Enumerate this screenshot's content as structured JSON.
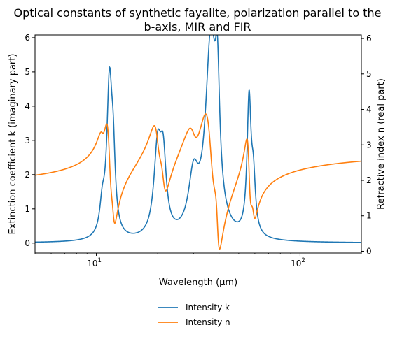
{
  "chart_data": {
    "type": "line",
    "title_line1": "Optical constants of synthetic fayalite, polarization parallel to the",
    "title_line2": "b-axis, MIR and FIR",
    "xlabel": "Wavelength (μm)",
    "ylabel_left": "Extinction coefficient k (imaginary part)",
    "ylabel_right": "Refractive index n (real part)",
    "x_scale": "log",
    "xlim": [
      5,
      200
    ],
    "ylim_left": [
      -0.29,
      6.08
    ],
    "ylim_right": [
      -0.05,
      6.1
    ],
    "x_ticks": [
      {
        "value": 10,
        "mantissa": "10",
        "exp": "1"
      },
      {
        "value": 100,
        "mantissa": "10",
        "exp": "2"
      }
    ],
    "y_ticks_left": [
      0,
      1,
      2,
      3,
      4,
      5,
      6
    ],
    "y_ticks_right": [
      0,
      1,
      2,
      3,
      4,
      5,
      6
    ],
    "grid": false,
    "legend_position": "bottom-center, below plot",
    "series": [
      {
        "name": "Intensity k",
        "axis": "left",
        "color": "#1f77b4",
        "offset": 0.0,
        "baseline": 0.0,
        "resonances": [
          {
            "x": 10.7,
            "a": 0.8,
            "w": 0.015
          },
          {
            "x": 11.6,
            "a": 4.4,
            "w": 0.016
          },
          {
            "x": 12.1,
            "a": 1.75,
            "w": 0.012
          },
          {
            "x": 20.0,
            "a": 2.5,
            "w": 0.022
          },
          {
            "x": 21.3,
            "a": 2.0,
            "w": 0.018
          },
          {
            "x": 30.0,
            "a": 1.6,
            "w": 0.03
          },
          {
            "x": 36.5,
            "a": 5.7,
            "w": 0.032
          },
          {
            "x": 39.3,
            "a": 3.05,
            "w": 0.013
          },
          {
            "x": 56.2,
            "a": 3.9,
            "w": 0.012
          },
          {
            "x": 59.0,
            "a": 1.45,
            "w": 0.012
          }
        ]
      },
      {
        "name": "Intensity n",
        "axis": "right",
        "color": "#ff7f0e",
        "offset": 1.7,
        "baseline": 2.9,
        "resonances": [
          {
            "x": 10.7,
            "a": 0.8,
            "w": 0.015
          },
          {
            "x": 11.6,
            "a": 4.4,
            "w": 0.016
          },
          {
            "x": 12.1,
            "a": 1.75,
            "w": 0.012
          },
          {
            "x": 20.0,
            "a": 2.5,
            "w": 0.022
          },
          {
            "x": 21.3,
            "a": 2.0,
            "w": 0.018
          },
          {
            "x": 30.0,
            "a": 1.6,
            "w": 0.03
          },
          {
            "x": 36.5,
            "a": 5.7,
            "w": 0.032
          },
          {
            "x": 39.3,
            "a": 3.05,
            "w": 0.013
          },
          {
            "x": 56.2,
            "a": 3.9,
            "w": 0.012
          },
          {
            "x": 59.0,
            "a": 1.45,
            "w": 0.012
          }
        ]
      }
    ]
  }
}
